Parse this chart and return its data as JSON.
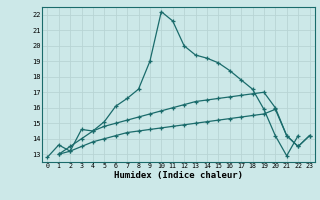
{
  "xlabel": "Humidex (Indice chaleur)",
  "background_color": "#cce8e8",
  "grid_color": "#b8d4d4",
  "line_color": "#1a6b6b",
  "xlim": [
    -0.5,
    23.5
  ],
  "ylim": [
    12.5,
    22.5
  ],
  "xticks": [
    0,
    1,
    2,
    3,
    4,
    5,
    6,
    7,
    8,
    9,
    10,
    11,
    12,
    13,
    14,
    15,
    16,
    17,
    18,
    19,
    20,
    21,
    22,
    23
  ],
  "yticks": [
    13,
    14,
    15,
    16,
    17,
    18,
    19,
    20,
    21,
    22
  ],
  "series": [
    [
      12.8,
      13.6,
      13.2,
      14.6,
      14.5,
      15.1,
      16.1,
      16.6,
      17.2,
      19.0,
      22.2,
      21.6,
      20.0,
      19.4,
      19.2,
      18.9,
      18.4,
      17.8,
      17.2,
      15.9,
      14.2,
      12.9,
      14.2
    ],
    [
      13.0,
      13.5,
      14.0,
      14.5,
      14.8,
      15.0,
      15.2,
      15.4,
      15.6,
      15.8,
      16.0,
      16.2,
      16.4,
      16.5,
      16.6,
      16.7,
      16.8,
      16.9,
      17.0,
      16.0,
      14.2,
      13.5,
      14.2
    ],
    [
      13.0,
      13.2,
      13.5,
      13.8,
      14.0,
      14.2,
      14.4,
      14.5,
      14.6,
      14.7,
      14.8,
      14.9,
      15.0,
      15.1,
      15.2,
      15.3,
      15.4,
      15.5,
      15.6,
      15.9,
      14.2,
      13.5,
      14.2
    ]
  ],
  "x_series": [
    [
      0,
      1,
      2,
      3,
      4,
      5,
      6,
      7,
      8,
      9,
      10,
      11,
      12,
      13,
      14,
      15,
      16,
      17,
      18,
      19,
      20,
      21,
      22
    ],
    [
      1,
      2,
      3,
      4,
      5,
      6,
      7,
      8,
      9,
      10,
      11,
      12,
      13,
      14,
      15,
      16,
      17,
      18,
      19,
      20,
      21,
      22,
      23
    ],
    [
      1,
      2,
      3,
      4,
      5,
      6,
      7,
      8,
      9,
      10,
      11,
      12,
      13,
      14,
      15,
      16,
      17,
      18,
      19,
      20,
      21,
      22,
      23
    ]
  ],
  "figwidth": 3.2,
  "figheight": 2.0,
  "dpi": 100
}
